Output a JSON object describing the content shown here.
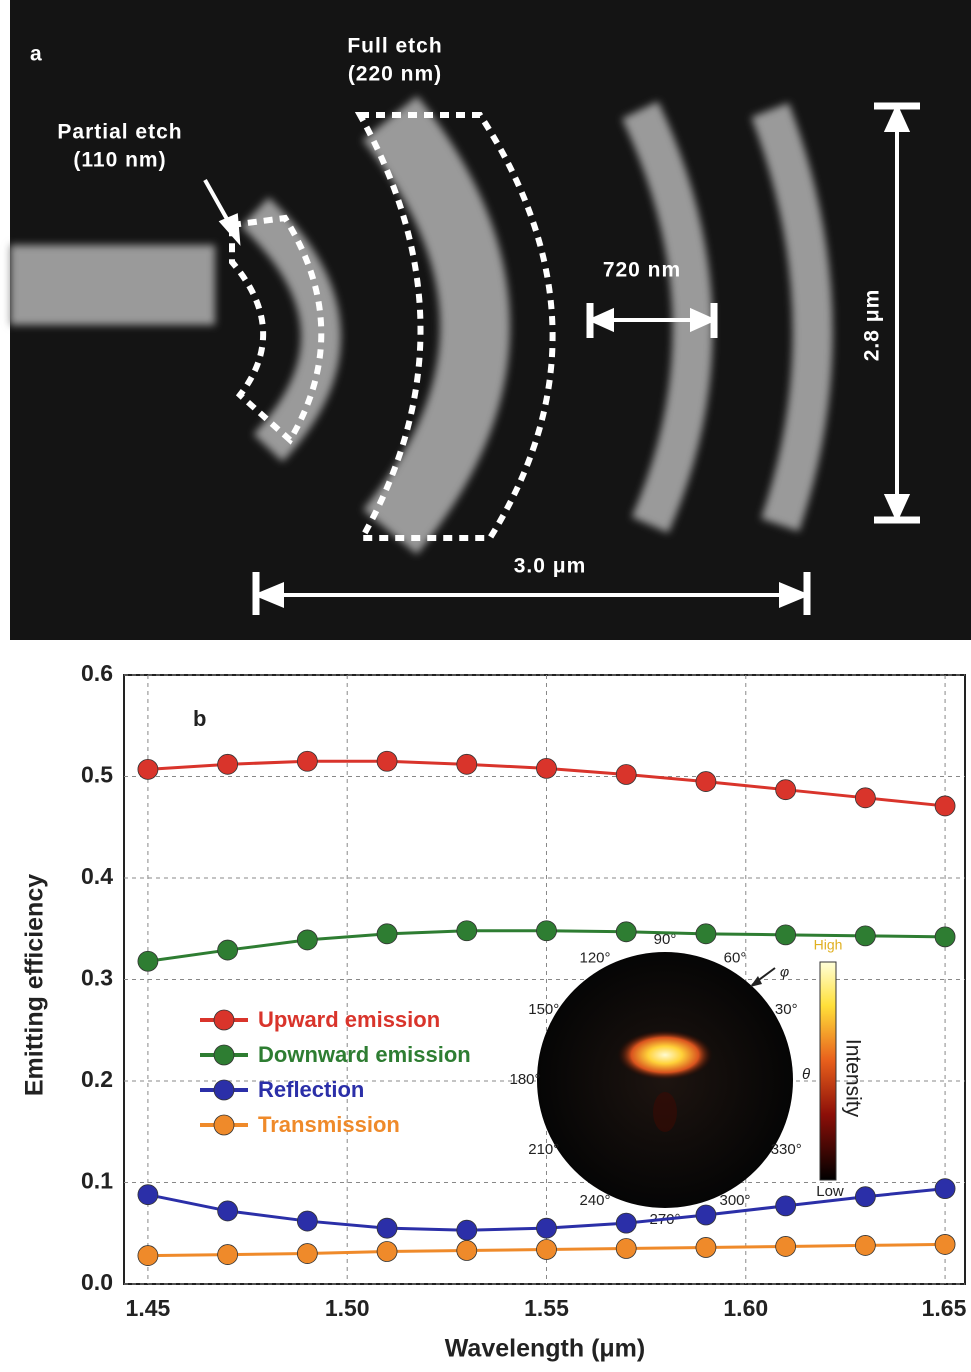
{
  "panel_a": {
    "label": "a",
    "full_etch": "Full etch",
    "full_etch_depth": "(220 nm)",
    "partial_etch": "Partial etch",
    "partial_etch_depth": "(110 nm)",
    "period": "720 nm",
    "height": "2.8 μm",
    "width": "3.0 μm"
  },
  "chart_data": {
    "type": "line",
    "panel_label": "b",
    "xlabel": "Wavelength (μm)",
    "ylabel": "Emitting efficiency",
    "x": [
      1.45,
      1.47,
      1.49,
      1.51,
      1.53,
      1.55,
      1.57,
      1.59,
      1.61,
      1.63,
      1.65
    ],
    "series": [
      {
        "name": "Upward emission",
        "color": "#d9342b",
        "values": [
          0.507,
          0.512,
          0.515,
          0.515,
          0.512,
          0.508,
          0.502,
          0.495,
          0.487,
          0.479,
          0.471
        ]
      },
      {
        "name": "Downward emission",
        "color": "#2e7d32",
        "values": [
          0.318,
          0.329,
          0.339,
          0.345,
          0.348,
          0.348,
          0.347,
          0.345,
          0.344,
          0.343,
          0.342
        ]
      },
      {
        "name": "Reflection",
        "color": "#2b2fa8",
        "values": [
          0.088,
          0.072,
          0.062,
          0.055,
          0.053,
          0.055,
          0.06,
          0.068,
          0.077,
          0.086,
          0.094
        ]
      },
      {
        "name": "Transmission",
        "color": "#ef8a2a",
        "values": [
          0.028,
          0.029,
          0.03,
          0.032,
          0.033,
          0.034,
          0.035,
          0.036,
          0.037,
          0.038,
          0.039
        ]
      }
    ],
    "xlim": [
      1.444,
      1.655
    ],
    "ylim": [
      0,
      0.6
    ],
    "xticks": [
      1.45,
      {
        "value": 1.5,
        "label": "1.50"
      },
      1.55,
      {
        "value": 1.6,
        "label": "1.60"
      },
      1.65
    ],
    "yticks": [
      {
        "value": 0,
        "label": "0.0"
      },
      0.1,
      0.2,
      0.3,
      0.4,
      0.5,
      0.6
    ],
    "grid": true
  },
  "inset": {
    "angle_labels": [
      "30°",
      "60°",
      "90°",
      "120°",
      "150°",
      "180°",
      "210°",
      "240°",
      "270°",
      "300°",
      "330°"
    ],
    "high": "High",
    "low": "Low",
    "colorbar_label": "Intensity",
    "phi": "φ",
    "theta": "θ"
  }
}
